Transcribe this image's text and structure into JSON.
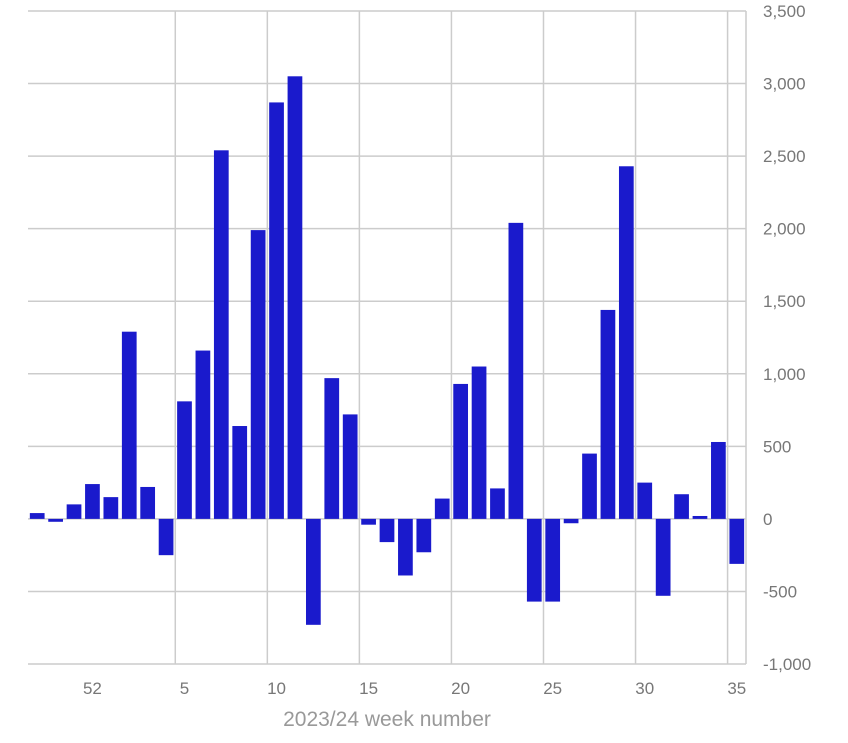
{
  "chart_data": {
    "type": "bar",
    "xlabel": "2023/24 week number",
    "ylabel": "",
    "ylim": [
      -1000,
      3500
    ],
    "y_ticks": [
      "3,500",
      "3,000",
      "2,500",
      "2,000",
      "1,500",
      "1,000",
      "500",
      "0",
      "-500",
      "-1,000"
    ],
    "y_tick_values": [
      3500,
      3000,
      2500,
      2000,
      1500,
      1000,
      500,
      0,
      -500,
      -1000
    ],
    "x_ticks": [
      "52",
      "5",
      "10",
      "15",
      "20",
      "25",
      "30",
      "35"
    ],
    "x_tick_values": [
      52,
      5,
      10,
      15,
      20,
      25,
      30,
      35
    ],
    "bar_color": "#1a1acc",
    "grid": true,
    "weeks": [
      49,
      50,
      51,
      52,
      1,
      2,
      3,
      4,
      5,
      6,
      7,
      8,
      9,
      10,
      11,
      12,
      13,
      14,
      15,
      16,
      17,
      18,
      19,
      20,
      21,
      22,
      23,
      24,
      25,
      26,
      27,
      28,
      29,
      30,
      31,
      32,
      33,
      34,
      35
    ],
    "values": [
      40,
      -20,
      100,
      240,
      150,
      1290,
      220,
      -250,
      810,
      1160,
      2540,
      640,
      1990,
      2870,
      3050,
      -730,
      970,
      720,
      -40,
      -160,
      -390,
      -230,
      140,
      930,
      1050,
      210,
      2040,
      -570,
      -570,
      -30,
      450,
      1440,
      2430,
      250,
      -530,
      170,
      20,
      530,
      -310
    ]
  }
}
